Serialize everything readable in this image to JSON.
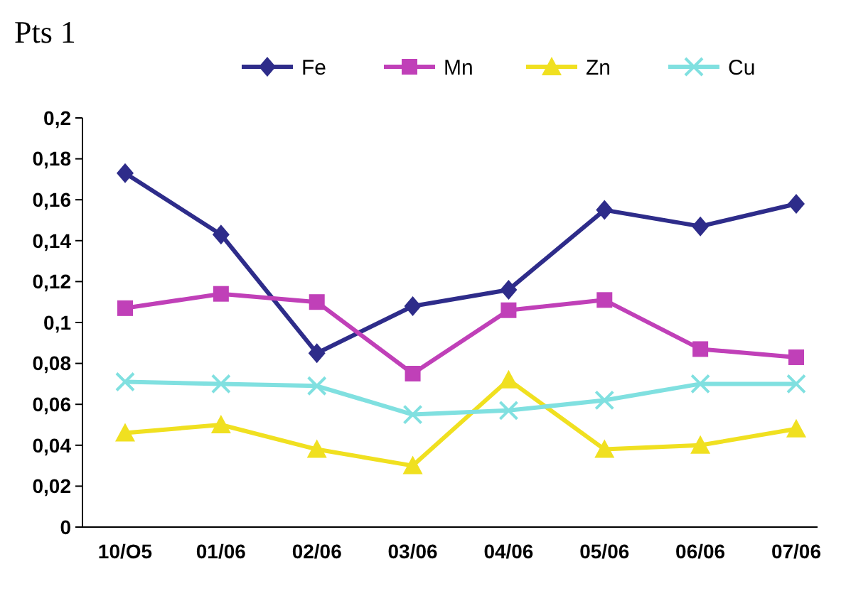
{
  "chart_data": {
    "type": "line",
    "title": "Pts 1",
    "categories": [
      "10/O5",
      "01/06",
      "02/06",
      "03/06",
      "04/06",
      "05/06",
      "06/06",
      "07/06"
    ],
    "series": [
      {
        "name": "Fe",
        "color": "#2e2c8a",
        "marker": "diamond",
        "values": [
          0.173,
          0.143,
          0.085,
          0.108,
          0.116,
          0.155,
          0.147,
          0.158
        ]
      },
      {
        "name": "Mn",
        "color": "#c040b8",
        "marker": "square",
        "values": [
          0.107,
          0.114,
          0.11,
          0.075,
          0.106,
          0.111,
          0.087,
          0.083
        ]
      },
      {
        "name": "Zn",
        "color": "#f0e020",
        "marker": "triangle",
        "values": [
          0.046,
          0.05,
          0.038,
          0.03,
          0.072,
          0.038,
          0.04,
          0.048
        ]
      },
      {
        "name": "Cu",
        "color": "#80e0e0",
        "marker": "cross",
        "values": [
          0.071,
          0.07,
          0.069,
          0.055,
          0.057,
          0.062,
          0.07,
          0.07
        ]
      }
    ],
    "ylim": [
      0,
      0.2
    ],
    "yticks": [
      {
        "value": 0,
        "label": "0"
      },
      {
        "value": 0.02,
        "label": "0,02"
      },
      {
        "value": 0.04,
        "label": "0,04"
      },
      {
        "value": 0.06,
        "label": "0,06"
      },
      {
        "value": 0.08,
        "label": "0,08"
      },
      {
        "value": 0.1,
        "label": "0,1"
      },
      {
        "value": 0.12,
        "label": "0,12"
      },
      {
        "value": 0.14,
        "label": "0,14"
      },
      {
        "value": 0.16,
        "label": "0,16"
      },
      {
        "value": 0.18,
        "label": "0,18"
      },
      {
        "value": 0.2,
        "label": "0,2"
      }
    ],
    "grid": false,
    "legend": "top"
  }
}
